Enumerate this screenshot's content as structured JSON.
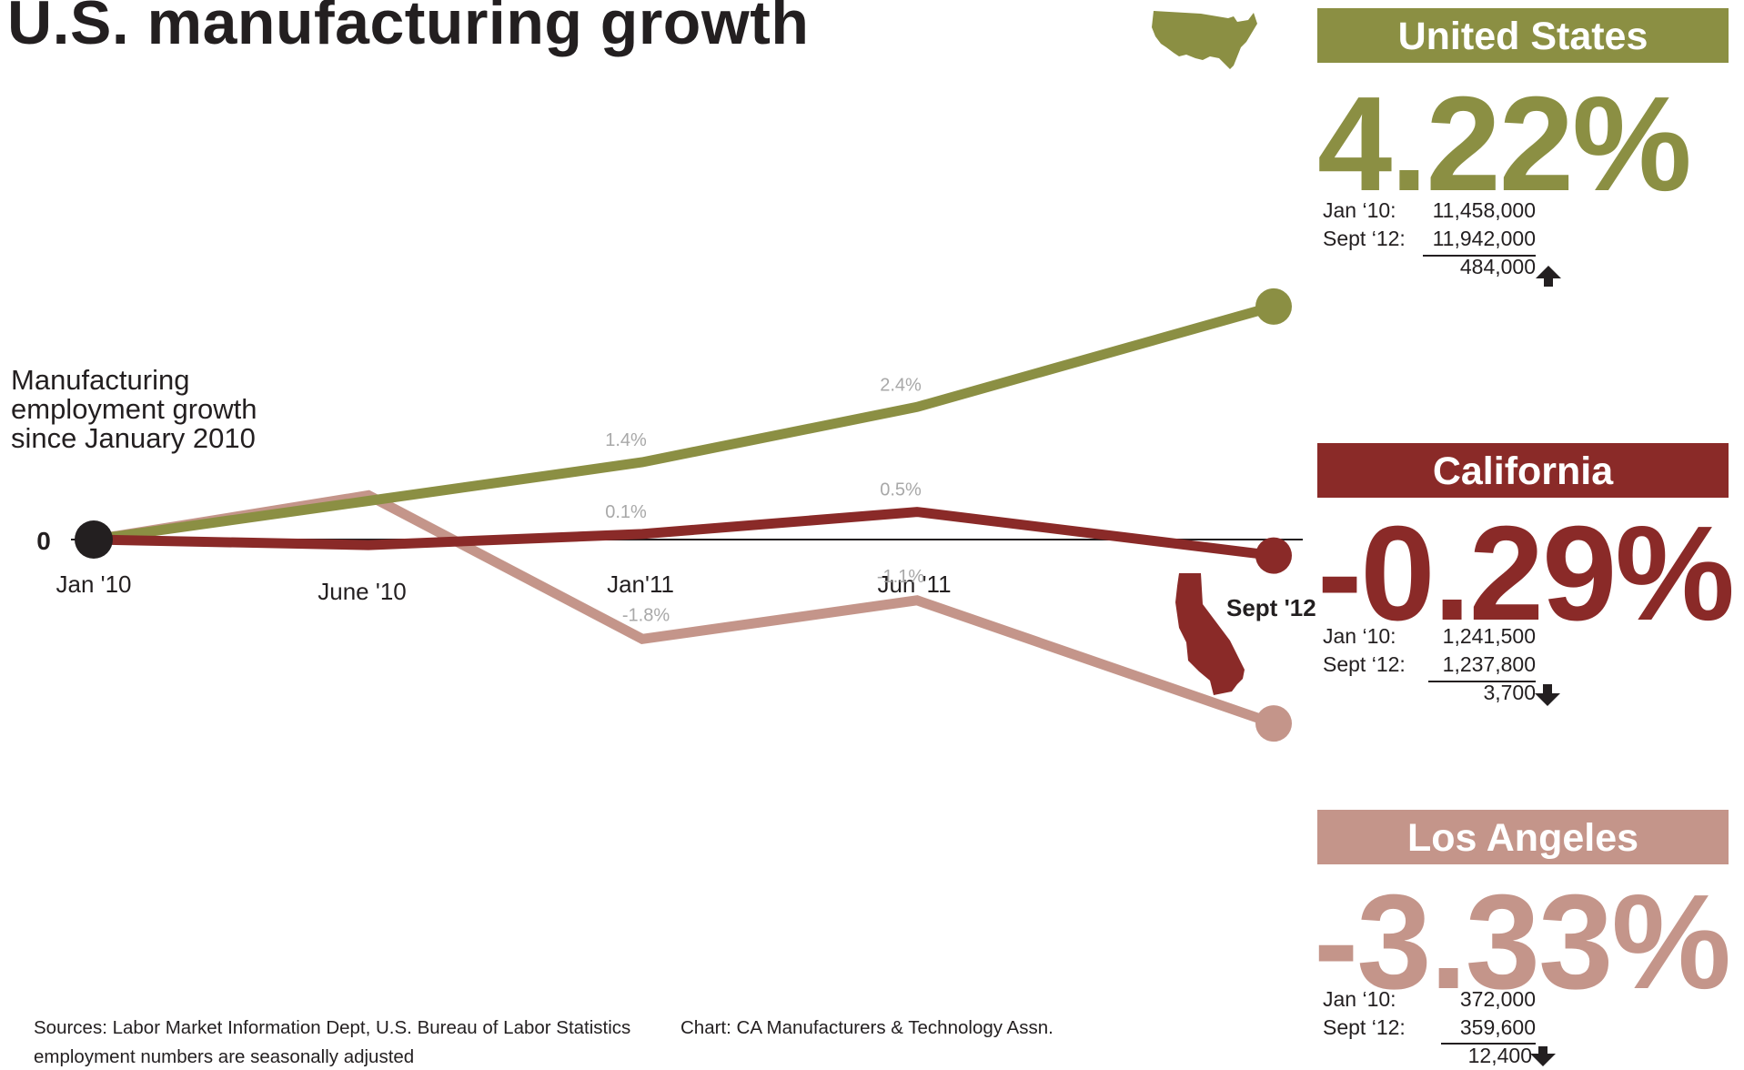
{
  "title": "U.S. manufacturing growth",
  "ylabel": "Manufacturing employment growth since January 2010",
  "colors": {
    "us": "#8b8f43",
    "ca": "#8a2a28",
    "la": "#c4958a",
    "axis": "#231f20",
    "data_label": "#a8a8a8"
  },
  "chart_data": {
    "type": "line",
    "x_labels": [
      "Jan '10",
      "June '10",
      "Jan'11",
      "Jun '11",
      "Sept '12"
    ],
    "zero_label": "0",
    "series": [
      {
        "name": "United States",
        "key": "us",
        "values": [
          0,
          0.7,
          1.4,
          2.4,
          4.22
        ],
        "labels": [
          "",
          "",
          "1.4%",
          "2.4%",
          ""
        ]
      },
      {
        "name": "California",
        "key": "ca",
        "values": [
          0,
          -0.1,
          0.1,
          0.5,
          -0.29
        ],
        "labels": [
          "",
          "",
          "0.1%",
          "0.5%",
          ""
        ]
      },
      {
        "name": "Los Angeles",
        "key": "la",
        "values": [
          0,
          0.8,
          -1.8,
          -1.1,
          -3.33
        ],
        "labels": [
          "",
          "",
          "-1.8%",
          "-1.1%",
          ""
        ]
      }
    ]
  },
  "panels": {
    "us": {
      "name": "United States",
      "pct": "4.22%",
      "jan_label": "Jan ‘10:",
      "jan_value": "11,458,000",
      "sept_label": "Sept ‘12:",
      "sept_value": "11,942,000",
      "diff": "484,000",
      "direction": "up",
      "map_icon": "us-map-icon"
    },
    "ca": {
      "name": "California",
      "pct": "-0.29%",
      "jan_label": "Jan ‘10:",
      "jan_value": "1,241,500",
      "sept_label": "Sept ‘12:",
      "sept_value": "1,237,800",
      "diff": "3,700",
      "direction": "down",
      "map_icon": "california-map-icon"
    },
    "la": {
      "name": "Los Angeles",
      "pct": "-3.33%",
      "jan_label": "Jan ‘10:",
      "jan_value": "372,000",
      "sept_label": "Sept ‘12:",
      "sept_value": "359,600",
      "diff": "12,400",
      "direction": "down"
    }
  },
  "footer": {
    "sources": "Sources: Labor Market Information Dept, U.S. Bureau of Labor Statistics",
    "credit": "Chart: CA Manufacturers & Technology Assn.",
    "note": "employment numbers are seasonally adjusted"
  }
}
